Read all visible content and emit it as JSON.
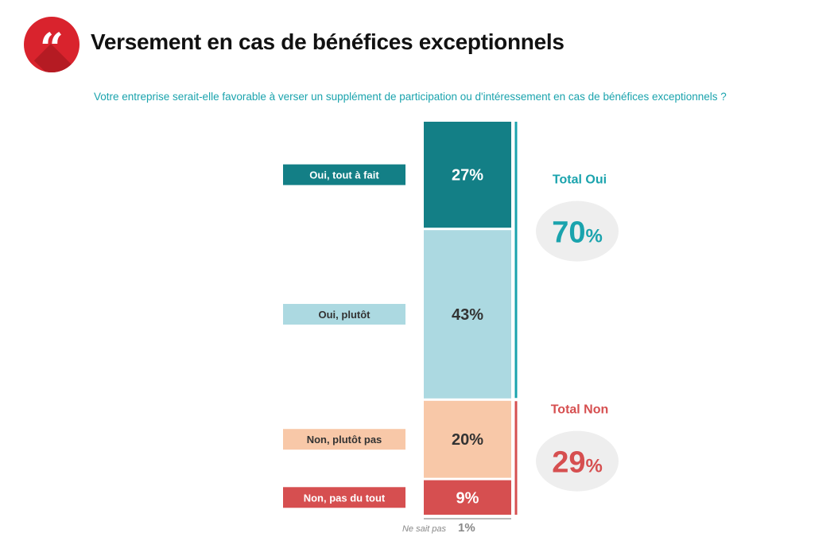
{
  "header": {
    "title": "Versement en cas de bénéfices exceptionnels",
    "subtitle": "Votre entreprise serait-elle favorable à verser un supplément de participation ou d'intéressement en cas de bénéfices exceptionnels ?",
    "logo_glyph": "“"
  },
  "chart_data": {
    "type": "bar",
    "orientation": "stacked-vertical",
    "title": "Versement en cas de bénéfices exceptionnels",
    "categories": [
      "Oui, tout à fait",
      "Oui, plutôt",
      "Non, plutôt pas",
      "Non, pas du tout",
      "Ne sait pas"
    ],
    "values": [
      27,
      43,
      20,
      9,
      1
    ],
    "value_labels": [
      "27%",
      "43%",
      "20%",
      "9%",
      "1%"
    ],
    "colors": [
      "#137f86",
      "#acd9e1",
      "#f8c8a8",
      "#d64f50",
      "#bbbbbb"
    ],
    "label_text_colors": [
      "#ffffff",
      "#333333",
      "#333333",
      "#ffffff",
      "#888888"
    ],
    "value_text_colors": [
      "#ffffff",
      "#333333",
      "#333333",
      "#ffffff",
      "#888888"
    ],
    "ylim": [
      0,
      100
    ],
    "totals": [
      {
        "label": "Total Oui",
        "value": "70",
        "unit": "%",
        "color": "#1aa3ad",
        "covers": [
          0,
          1
        ]
      },
      {
        "label": "Total Non",
        "value": "29",
        "unit": "%",
        "color": "#d64f50",
        "covers": [
          2,
          3
        ]
      }
    ]
  }
}
